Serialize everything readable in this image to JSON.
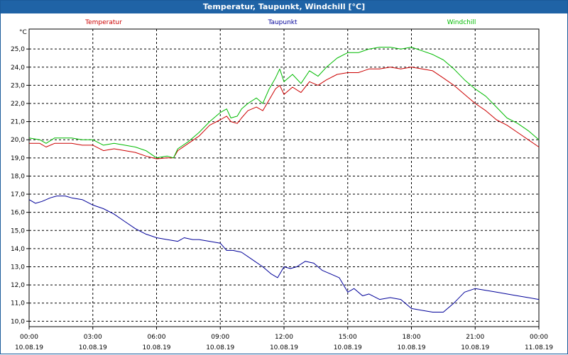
{
  "window": {
    "title": "Temperatur, Taupunkt, Windchill [°C]"
  },
  "chart_data": {
    "type": "line",
    "title": "Temperatur, Taupunkt, Windchill [°C]",
    "ylabel": "°C",
    "ylim": [
      9.7,
      26.1
    ],
    "xlim": [
      0,
      24
    ],
    "grid": true,
    "yticks": [
      10.0,
      11.0,
      12.0,
      13.0,
      14.0,
      15.0,
      16.0,
      17.0,
      18.0,
      19.0,
      20.0,
      21.0,
      22.0,
      23.0,
      24.0,
      25.0
    ],
    "ytick_labels": [
      "10,0",
      "11,0",
      "12,0",
      "13,0",
      "14,0",
      "15,0",
      "16,0",
      "17,0",
      "18,0",
      "19,0",
      "20,0",
      "21,0",
      "22,0",
      "23,0",
      "24,0",
      "25,0"
    ],
    "xticks": [
      {
        "hour": 0,
        "time": "00:00",
        "date": "10.08.19"
      },
      {
        "hour": 3,
        "time": "03:00",
        "date": "10.08.19"
      },
      {
        "hour": 6,
        "time": "06:00",
        "date": "10.08.19"
      },
      {
        "hour": 9,
        "time": "09:00",
        "date": "10.08.19"
      },
      {
        "hour": 12,
        "time": "12:00",
        "date": "10.08.19"
      },
      {
        "hour": 15,
        "time": "15:00",
        "date": "10.08.19"
      },
      {
        "hour": 18,
        "time": "18:00",
        "date": "10.08.19"
      },
      {
        "hour": 21,
        "time": "21:00",
        "date": "10.08.19"
      },
      {
        "hour": 24,
        "time": "00:00",
        "date": "11.08.19"
      }
    ],
    "series": [
      {
        "name": "Temperatur",
        "color": "#cc0000",
        "points": [
          [
            0,
            19.8
          ],
          [
            0.5,
            19.8
          ],
          [
            0.8,
            19.6
          ],
          [
            1.2,
            19.8
          ],
          [
            2,
            19.8
          ],
          [
            2.5,
            19.7
          ],
          [
            3,
            19.7
          ],
          [
            3.5,
            19.4
          ],
          [
            4,
            19.5
          ],
          [
            5,
            19.3
          ],
          [
            5.5,
            19.1
          ],
          [
            6,
            18.95
          ],
          [
            6.5,
            19.0
          ],
          [
            6.8,
            19.0
          ],
          [
            7,
            19.4
          ],
          [
            7.5,
            19.8
          ],
          [
            8,
            20.2
          ],
          [
            8.5,
            20.8
          ],
          [
            9,
            21.1
          ],
          [
            9.3,
            21.3
          ],
          [
            9.5,
            21.0
          ],
          [
            9.8,
            20.9
          ],
          [
            10,
            21.2
          ],
          [
            10.3,
            21.6
          ],
          [
            10.7,
            21.8
          ],
          [
            11,
            21.6
          ],
          [
            11.3,
            22.2
          ],
          [
            11.6,
            22.8
          ],
          [
            11.8,
            23.0
          ],
          [
            12,
            22.5
          ],
          [
            12.4,
            22.9
          ],
          [
            12.8,
            22.6
          ],
          [
            13.2,
            23.2
          ],
          [
            13.6,
            23.0
          ],
          [
            14,
            23.3
          ],
          [
            14.5,
            23.6
          ],
          [
            15,
            23.7
          ],
          [
            15.5,
            23.7
          ],
          [
            16,
            23.9
          ],
          [
            16.5,
            23.9
          ],
          [
            17,
            24.0
          ],
          [
            17.5,
            23.9
          ],
          [
            18,
            24.0
          ],
          [
            18.5,
            23.9
          ],
          [
            19,
            23.8
          ],
          [
            19.5,
            23.4
          ],
          [
            20,
            23.0
          ],
          [
            20.5,
            22.5
          ],
          [
            21,
            22.0
          ],
          [
            21.5,
            21.6
          ],
          [
            22,
            21.1
          ],
          [
            22.5,
            20.8
          ],
          [
            23,
            20.4
          ],
          [
            23.5,
            20.0
          ],
          [
            24,
            19.6
          ]
        ]
      },
      {
        "name": "Taupunkt",
        "color": "#000099",
        "points": [
          [
            0,
            16.7
          ],
          [
            0.3,
            16.5
          ],
          [
            0.6,
            16.6
          ],
          [
            1,
            16.8
          ],
          [
            1.3,
            16.9
          ],
          [
            1.7,
            16.9
          ],
          [
            2,
            16.8
          ],
          [
            2.5,
            16.7
          ],
          [
            3,
            16.4
          ],
          [
            3.5,
            16.2
          ],
          [
            4,
            15.9
          ],
          [
            4.5,
            15.5
          ],
          [
            5,
            15.1
          ],
          [
            5.5,
            14.8
          ],
          [
            6,
            14.6
          ],
          [
            6.5,
            14.5
          ],
          [
            7,
            14.4
          ],
          [
            7.3,
            14.6
          ],
          [
            7.7,
            14.5
          ],
          [
            8,
            14.5
          ],
          [
            8.5,
            14.4
          ],
          [
            9,
            14.3
          ],
          [
            9.3,
            13.9
          ],
          [
            9.6,
            13.9
          ],
          [
            10,
            13.8
          ],
          [
            10.5,
            13.4
          ],
          [
            11,
            13.0
          ],
          [
            11.4,
            12.6
          ],
          [
            11.7,
            12.4
          ],
          [
            12,
            13.0
          ],
          [
            12.3,
            12.9
          ],
          [
            12.6,
            13.0
          ],
          [
            13,
            13.3
          ],
          [
            13.4,
            13.2
          ],
          [
            13.8,
            12.8
          ],
          [
            14.2,
            12.6
          ],
          [
            14.6,
            12.4
          ],
          [
            15,
            11.6
          ],
          [
            15.3,
            11.8
          ],
          [
            15.7,
            11.4
          ],
          [
            16,
            11.5
          ],
          [
            16.5,
            11.2
          ],
          [
            17,
            11.3
          ],
          [
            17.5,
            11.2
          ],
          [
            18,
            10.7
          ],
          [
            18.5,
            10.6
          ],
          [
            19,
            10.5
          ],
          [
            19.5,
            10.5
          ],
          [
            20,
            11.0
          ],
          [
            20.5,
            11.6
          ],
          [
            21,
            11.8
          ],
          [
            21.5,
            11.7
          ],
          [
            22,
            11.6
          ],
          [
            22.5,
            11.5
          ],
          [
            23,
            11.4
          ],
          [
            23.5,
            11.3
          ],
          [
            24,
            11.2
          ]
        ]
      },
      {
        "name": "Windchill",
        "color": "#00bb00",
        "points": [
          [
            0,
            20.1
          ],
          [
            0.5,
            20.0
          ],
          [
            0.8,
            19.8
          ],
          [
            1.2,
            20.1
          ],
          [
            2,
            20.1
          ],
          [
            2.5,
            20.0
          ],
          [
            3,
            20.0
          ],
          [
            3.5,
            19.7
          ],
          [
            4,
            19.8
          ],
          [
            5,
            19.6
          ],
          [
            5.5,
            19.4
          ],
          [
            6,
            19.0
          ],
          [
            6.5,
            19.1
          ],
          [
            6.8,
            19.0
          ],
          [
            7,
            19.5
          ],
          [
            7.5,
            19.9
          ],
          [
            8,
            20.4
          ],
          [
            8.5,
            21.0
          ],
          [
            9,
            21.5
          ],
          [
            9.3,
            21.7
          ],
          [
            9.5,
            21.2
          ],
          [
            9.8,
            21.3
          ],
          [
            10,
            21.7
          ],
          [
            10.3,
            22.0
          ],
          [
            10.7,
            22.3
          ],
          [
            11,
            22.0
          ],
          [
            11.3,
            22.8
          ],
          [
            11.6,
            23.4
          ],
          [
            11.8,
            23.9
          ],
          [
            12,
            23.2
          ],
          [
            12.4,
            23.6
          ],
          [
            12.8,
            23.1
          ],
          [
            13.2,
            23.8
          ],
          [
            13.6,
            23.5
          ],
          [
            14,
            24.0
          ],
          [
            14.5,
            24.5
          ],
          [
            15,
            24.8
          ],
          [
            15.5,
            24.8
          ],
          [
            16,
            25.0
          ],
          [
            16.5,
            25.1
          ],
          [
            17,
            25.1
          ],
          [
            17.5,
            25.0
          ],
          [
            18,
            25.1
          ],
          [
            18.5,
            24.9
          ],
          [
            19,
            24.7
          ],
          [
            19.5,
            24.4
          ],
          [
            20,
            23.9
          ],
          [
            20.5,
            23.3
          ],
          [
            21,
            22.8
          ],
          [
            21.5,
            22.4
          ],
          [
            22,
            21.8
          ],
          [
            22.5,
            21.2
          ],
          [
            23,
            20.9
          ],
          [
            23.5,
            20.5
          ],
          [
            24,
            20.0
          ]
        ]
      }
    ]
  }
}
